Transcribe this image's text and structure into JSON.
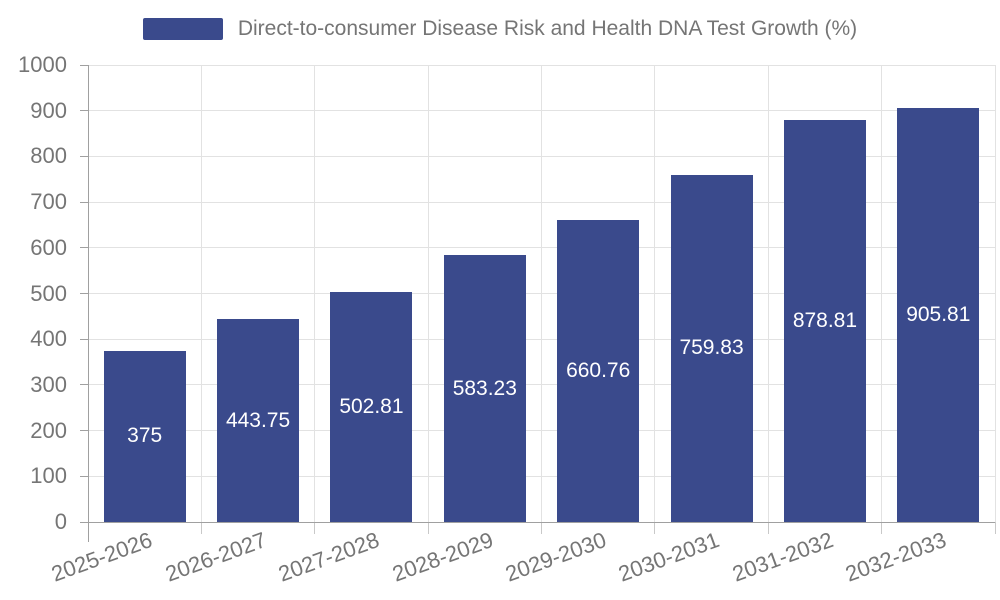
{
  "legend": {
    "label": "Direct-to-consumer Disease Risk and Health DNA Test Growth (%)"
  },
  "chart_data": {
    "type": "bar",
    "title": "",
    "xlabel": "",
    "ylabel": "",
    "categories": [
      "2025-2026",
      "2026-2027",
      "2027-2028",
      "2028-2029",
      "2029-2030",
      "2030-2031",
      "2031-2032",
      "2032-2033"
    ],
    "series": [
      {
        "name": "Direct-to-consumer Disease Risk and Health DNA Test Growth (%)",
        "values": [
          375,
          443.75,
          502.81,
          583.23,
          660.76,
          759.83,
          878.81,
          905.81
        ]
      }
    ],
    "value_labels": [
      "375",
      "443.75",
      "502.81",
      "583.23",
      "660.76",
      "759.83",
      "878.81",
      "905.81"
    ],
    "ylim": [
      0,
      1000
    ],
    "ytick_interval": 100,
    "ytick_labels": [
      "0",
      "100",
      "200",
      "300",
      "400",
      "500",
      "600",
      "700",
      "800",
      "900",
      "1000"
    ],
    "grid": true,
    "legend_position": "top",
    "x_label_rotation_deg": 20,
    "value_label_position": "inside-center"
  },
  "colors": {
    "bar": "#3a4a8c",
    "value_label": "#ffffff",
    "axis": "#a0a0a0",
    "grid": "#e2e2e2",
    "tick_text": "#757575",
    "background": "#ffffff"
  }
}
